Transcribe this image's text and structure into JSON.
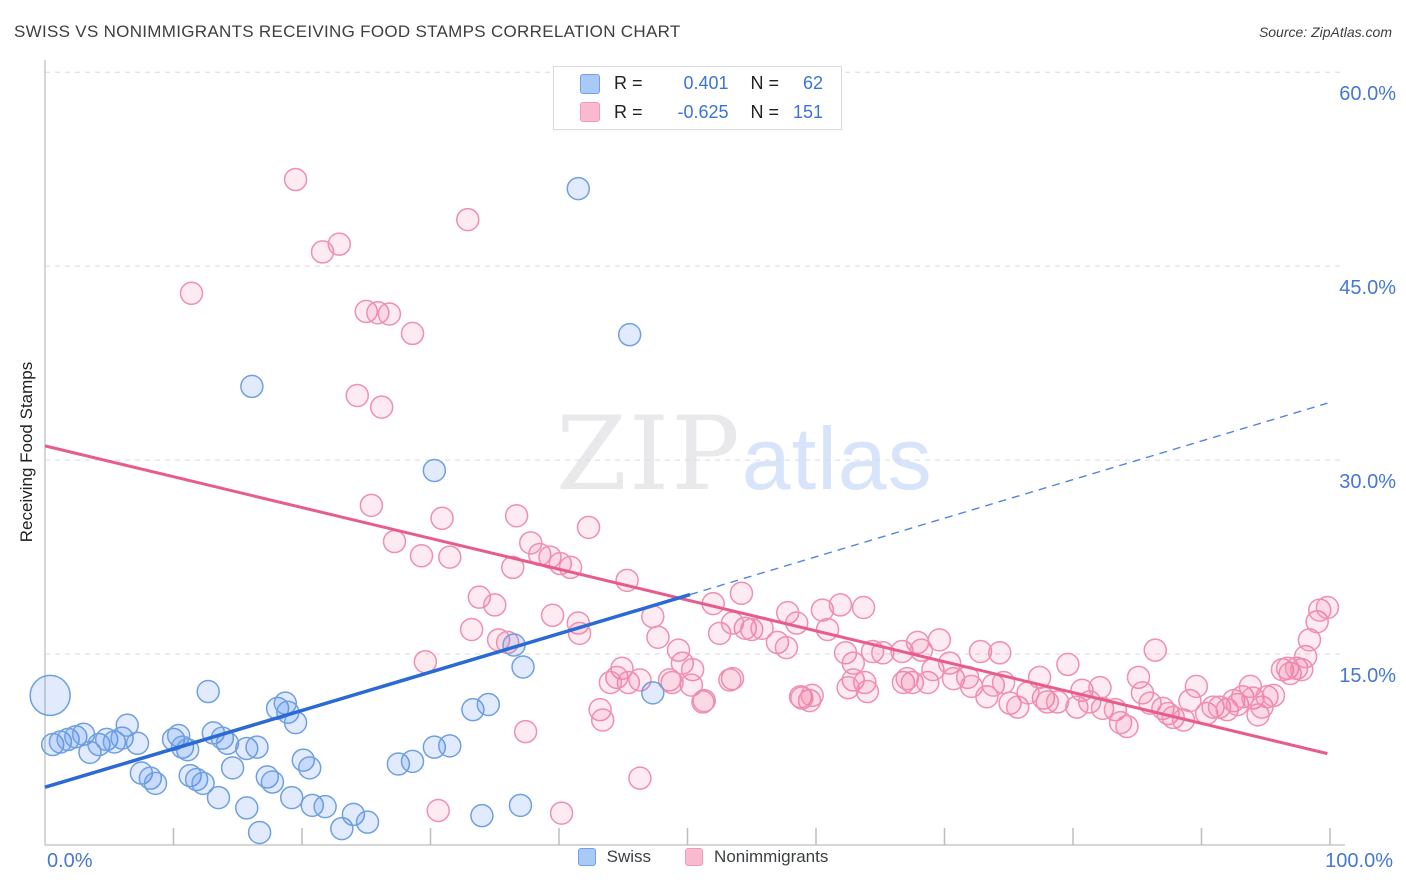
{
  "header": {
    "title": "SWISS VS NONIMMIGRANTS RECEIVING FOOD STAMPS CORRELATION CHART",
    "source": "Source: ZipAtlas.com"
  },
  "legend_box": {
    "series": [
      {
        "name": "Swiss",
        "r_label": "R =",
        "r_value": "0.401",
        "n_label": "N =",
        "n_value": "62"
      },
      {
        "name": "Nonimmigrants",
        "r_label": "R =",
        "r_value": "-0.625",
        "n_label": "N =",
        "n_value": "151"
      }
    ]
  },
  "axes": {
    "y": {
      "title": "Receiving Food Stamps",
      "ticks": [
        {
          "pct": 60,
          "label": "60.0%"
        },
        {
          "pct": 45,
          "label": "45.0%"
        },
        {
          "pct": 30,
          "label": "30.0%"
        },
        {
          "pct": 15,
          "label": "15.0%"
        }
      ]
    },
    "x": {
      "min_label": "0.0%",
      "max_label": "100.0%",
      "tick_step_pct": 10
    }
  },
  "watermark": {
    "part1": "ZIP",
    "part2": "atlas"
  },
  "bottom_legend": {
    "items": [
      {
        "label": "Swiss"
      },
      {
        "label": "Nonimmigrants"
      }
    ]
  },
  "colors": {
    "swiss_fill": "rgba(66,133,244,0.16)",
    "swiss_stroke": "#6fa0e0",
    "swiss_trend": "#2a6ad4",
    "swiss_trend_dashed": "#5585db",
    "nonimmigrants_fill": "rgba(240,98,146,0.13)",
    "nonimmigrants_stroke": "#f08faf",
    "nonimmigrants_trend": "#e75c8d",
    "gridline": "#dadada",
    "axis_line": "#c8c8c8",
    "tick_mark": "#bdbdbd",
    "tick_label": "#4678d2"
  },
  "chart_data": {
    "type": "scatter",
    "title": "SWISS VS NONIMMIGRANTS RECEIVING FOOD STAMPS CORRELATION CHART",
    "xlabel": "",
    "ylabel": "Receiving Food Stamps",
    "xlim": [
      0,
      100
    ],
    "ylim": [
      0,
      61
    ],
    "x_units": "percent",
    "y_units": "percent",
    "grid": "horizontal-dashed",
    "legend_position": "bottom-center",
    "series": [
      {
        "name": "Swiss",
        "R": 0.401,
        "N": 62,
        "trend_solid": {
          "x1": 0,
          "y1": 4.7,
          "x2": 50.2,
          "y2": 19.6
        },
        "trend_dashed": {
          "x1": 50.2,
          "y1": 19.6,
          "x2": 99.8,
          "y2": 34.4
        },
        "large_point": {
          "x": 0.4,
          "y": 11.8
        },
        "points": [
          [
            0.6,
            8.0
          ],
          [
            1.2,
            8.2
          ],
          [
            1.8,
            8.4
          ],
          [
            2.4,
            8.6
          ],
          [
            3.0,
            8.8
          ],
          [
            3.5,
            7.4
          ],
          [
            4.2,
            8.0
          ],
          [
            4.8,
            8.4
          ],
          [
            5.4,
            8.2
          ],
          [
            6.0,
            8.5
          ],
          [
            6.4,
            9.5
          ],
          [
            7.2,
            8.1
          ],
          [
            7.5,
            5.8
          ],
          [
            8.2,
            5.4
          ],
          [
            8.6,
            5.0
          ],
          [
            10.0,
            8.4
          ],
          [
            10.4,
            8.7
          ],
          [
            10.7,
            7.8
          ],
          [
            11.1,
            7.6
          ],
          [
            11.3,
            5.6
          ],
          [
            11.8,
            5.3
          ],
          [
            12.3,
            5.0
          ],
          [
            12.7,
            12.1
          ],
          [
            13.1,
            8.9
          ],
          [
            13.5,
            3.9
          ],
          [
            13.8,
            8.5
          ],
          [
            14.2,
            8.1
          ],
          [
            14.6,
            6.2
          ],
          [
            15.7,
            7.7
          ],
          [
            15.7,
            3.1
          ],
          [
            16.1,
            35.7
          ],
          [
            16.5,
            7.8
          ],
          [
            16.7,
            1.2
          ],
          [
            17.3,
            5.5
          ],
          [
            17.7,
            5.1
          ],
          [
            18.1,
            10.8
          ],
          [
            18.7,
            11.2
          ],
          [
            18.9,
            10.5
          ],
          [
            19.2,
            3.9
          ],
          [
            19.5,
            9.7
          ],
          [
            20.1,
            6.8
          ],
          [
            20.6,
            6.2
          ],
          [
            20.8,
            3.3
          ],
          [
            21.8,
            3.2
          ],
          [
            23.1,
            1.5
          ],
          [
            24.0,
            2.6
          ],
          [
            25.1,
            2.0
          ],
          [
            27.5,
            6.5
          ],
          [
            28.6,
            6.7
          ],
          [
            30.3,
            29.2
          ],
          [
            30.3,
            7.8
          ],
          [
            31.5,
            7.9
          ],
          [
            33.3,
            10.7
          ],
          [
            34.0,
            2.5
          ],
          [
            34.5,
            11.1
          ],
          [
            36.5,
            15.7
          ],
          [
            37.0,
            3.3
          ],
          [
            37.2,
            14.0
          ],
          [
            41.5,
            51.0
          ],
          [
            45.5,
            39.7
          ],
          [
            47.3,
            12.0
          ]
        ]
      },
      {
        "name": "Nonimmigrants",
        "R": -0.625,
        "N": 151,
        "trend_solid": {
          "x1": 0,
          "y1": 31.1,
          "x2": 99.8,
          "y2": 7.3
        },
        "points": [
          [
            19.5,
            51.7
          ],
          [
            32.9,
            48.6
          ],
          [
            21.6,
            46.1
          ],
          [
            22.9,
            46.7
          ],
          [
            11.4,
            42.9
          ],
          [
            25.0,
            41.5
          ],
          [
            25.9,
            41.4
          ],
          [
            26.8,
            41.3
          ],
          [
            28.6,
            39.8
          ],
          [
            24.3,
            35.0
          ],
          [
            26.2,
            34.1
          ],
          [
            25.4,
            26.5
          ],
          [
            27.2,
            23.7
          ],
          [
            29.3,
            22.6
          ],
          [
            30.9,
            25.5
          ],
          [
            31.5,
            22.5
          ],
          [
            36.7,
            25.7
          ],
          [
            42.3,
            24.8
          ],
          [
            37.8,
            23.6
          ],
          [
            38.5,
            22.7
          ],
          [
            39.3,
            22.5
          ],
          [
            40.1,
            22.0
          ],
          [
            40.9,
            21.7
          ],
          [
            36.4,
            21.7
          ],
          [
            45.3,
            20.7
          ],
          [
            33.8,
            19.4
          ],
          [
            35.0,
            18.8
          ],
          [
            39.5,
            18.0
          ],
          [
            33.2,
            16.9
          ],
          [
            41.5,
            17.4
          ],
          [
            41.6,
            16.6
          ],
          [
            47.3,
            17.9
          ],
          [
            47.7,
            16.3
          ],
          [
            35.3,
            16.1
          ],
          [
            36.0,
            15.9
          ],
          [
            49.3,
            15.3
          ],
          [
            49.6,
            14.3
          ],
          [
            50.4,
            13.8
          ],
          [
            52.0,
            18.9
          ],
          [
            52.5,
            16.6
          ],
          [
            54.2,
            19.7
          ],
          [
            54.5,
            17.0
          ],
          [
            53.5,
            13.1
          ],
          [
            44.9,
            13.9
          ],
          [
            44.5,
            13.2
          ],
          [
            45.4,
            12.8
          ],
          [
            46.3,
            13.0
          ],
          [
            48.6,
            13.0
          ],
          [
            50.3,
            12.6
          ],
          [
            51.2,
            11.3
          ],
          [
            43.2,
            10.7
          ],
          [
            43.4,
            9.9
          ],
          [
            37.4,
            9.0
          ],
          [
            57.8,
            18.2
          ],
          [
            58.5,
            17.4
          ],
          [
            53.5,
            17.4
          ],
          [
            55.0,
            16.9
          ],
          [
            55.8,
            17.0
          ],
          [
            57.0,
            15.9
          ],
          [
            57.7,
            15.5
          ],
          [
            60.5,
            18.4
          ],
          [
            60.9,
            16.9
          ],
          [
            61.9,
            18.8
          ],
          [
            63.7,
            18.6
          ],
          [
            62.3,
            15.1
          ],
          [
            62.9,
            14.3
          ],
          [
            58.8,
            11.7
          ],
          [
            59.5,
            11.4
          ],
          [
            64.4,
            15.2
          ],
          [
            65.2,
            15.1
          ],
          [
            62.9,
            13.0
          ],
          [
            63.8,
            12.8
          ],
          [
            66.7,
            15.2
          ],
          [
            30.6,
            2.9
          ],
          [
            40.2,
            2.7
          ],
          [
            46.3,
            5.4
          ],
          [
            44.0,
            12.8
          ],
          [
            48.8,
            12.8
          ],
          [
            51.3,
            11.4
          ],
          [
            53.3,
            13.0
          ],
          [
            58.9,
            11.6
          ],
          [
            59.7,
            11.8
          ],
          [
            62.5,
            12.4
          ],
          [
            64.0,
            12.1
          ],
          [
            66.8,
            12.8
          ],
          [
            67.5,
            12.8
          ],
          [
            29.6,
            14.4
          ],
          [
            67.9,
            15.9
          ],
          [
            69.6,
            16.1
          ],
          [
            68.2,
            15.3
          ],
          [
            67.1,
            13.1
          ],
          [
            68.7,
            12.8
          ],
          [
            69.1,
            13.8
          ],
          [
            70.4,
            14.3
          ],
          [
            70.7,
            13.1
          ],
          [
            71.8,
            13.2
          ],
          [
            72.1,
            12.5
          ],
          [
            72.8,
            15.2
          ],
          [
            74.3,
            15.1
          ],
          [
            73.3,
            11.7
          ],
          [
            73.8,
            12.6
          ],
          [
            74.6,
            12.8
          ],
          [
            75.1,
            11.2
          ],
          [
            75.7,
            10.9
          ],
          [
            77.4,
            13.2
          ],
          [
            77.7,
            11.6
          ],
          [
            78.0,
            11.3
          ],
          [
            78.8,
            11.3
          ],
          [
            79.6,
            14.2
          ],
          [
            80.3,
            10.9
          ],
          [
            80.7,
            12.2
          ],
          [
            81.3,
            11.3
          ],
          [
            82.1,
            12.4
          ],
          [
            82.3,
            10.8
          ],
          [
            83.3,
            10.7
          ],
          [
            83.7,
            9.7
          ],
          [
            84.2,
            9.4
          ],
          [
            85.1,
            13.2
          ],
          [
            85.4,
            12.0
          ],
          [
            86.0,
            11.2
          ],
          [
            87.0,
            10.8
          ],
          [
            87.4,
            10.4
          ],
          [
            87.8,
            10.1
          ],
          [
            88.6,
            9.9
          ],
          [
            89.1,
            11.4
          ],
          [
            89.6,
            12.5
          ],
          [
            90.4,
            10.4
          ],
          [
            90.9,
            10.9
          ],
          [
            91.4,
            10.9
          ],
          [
            92.0,
            10.7
          ],
          [
            92.5,
            11.4
          ],
          [
            92.8,
            11.1
          ],
          [
            93.2,
            11.7
          ],
          [
            93.8,
            12.5
          ],
          [
            94.0,
            11.6
          ],
          [
            94.4,
            10.3
          ],
          [
            94.7,
            10.9
          ],
          [
            95.1,
            11.7
          ],
          [
            95.6,
            11.8
          ],
          [
            96.3,
            13.8
          ],
          [
            96.7,
            13.9
          ],
          [
            96.9,
            13.5
          ],
          [
            97.4,
            13.9
          ],
          [
            97.8,
            13.8
          ],
          [
            98.1,
            14.8
          ],
          [
            98.4,
            16.1
          ],
          [
            99.0,
            17.5
          ],
          [
            99.2,
            18.4
          ],
          [
            99.8,
            18.6
          ],
          [
            76.5,
            12.0
          ],
          [
            86.4,
            15.3
          ]
        ]
      }
    ]
  }
}
